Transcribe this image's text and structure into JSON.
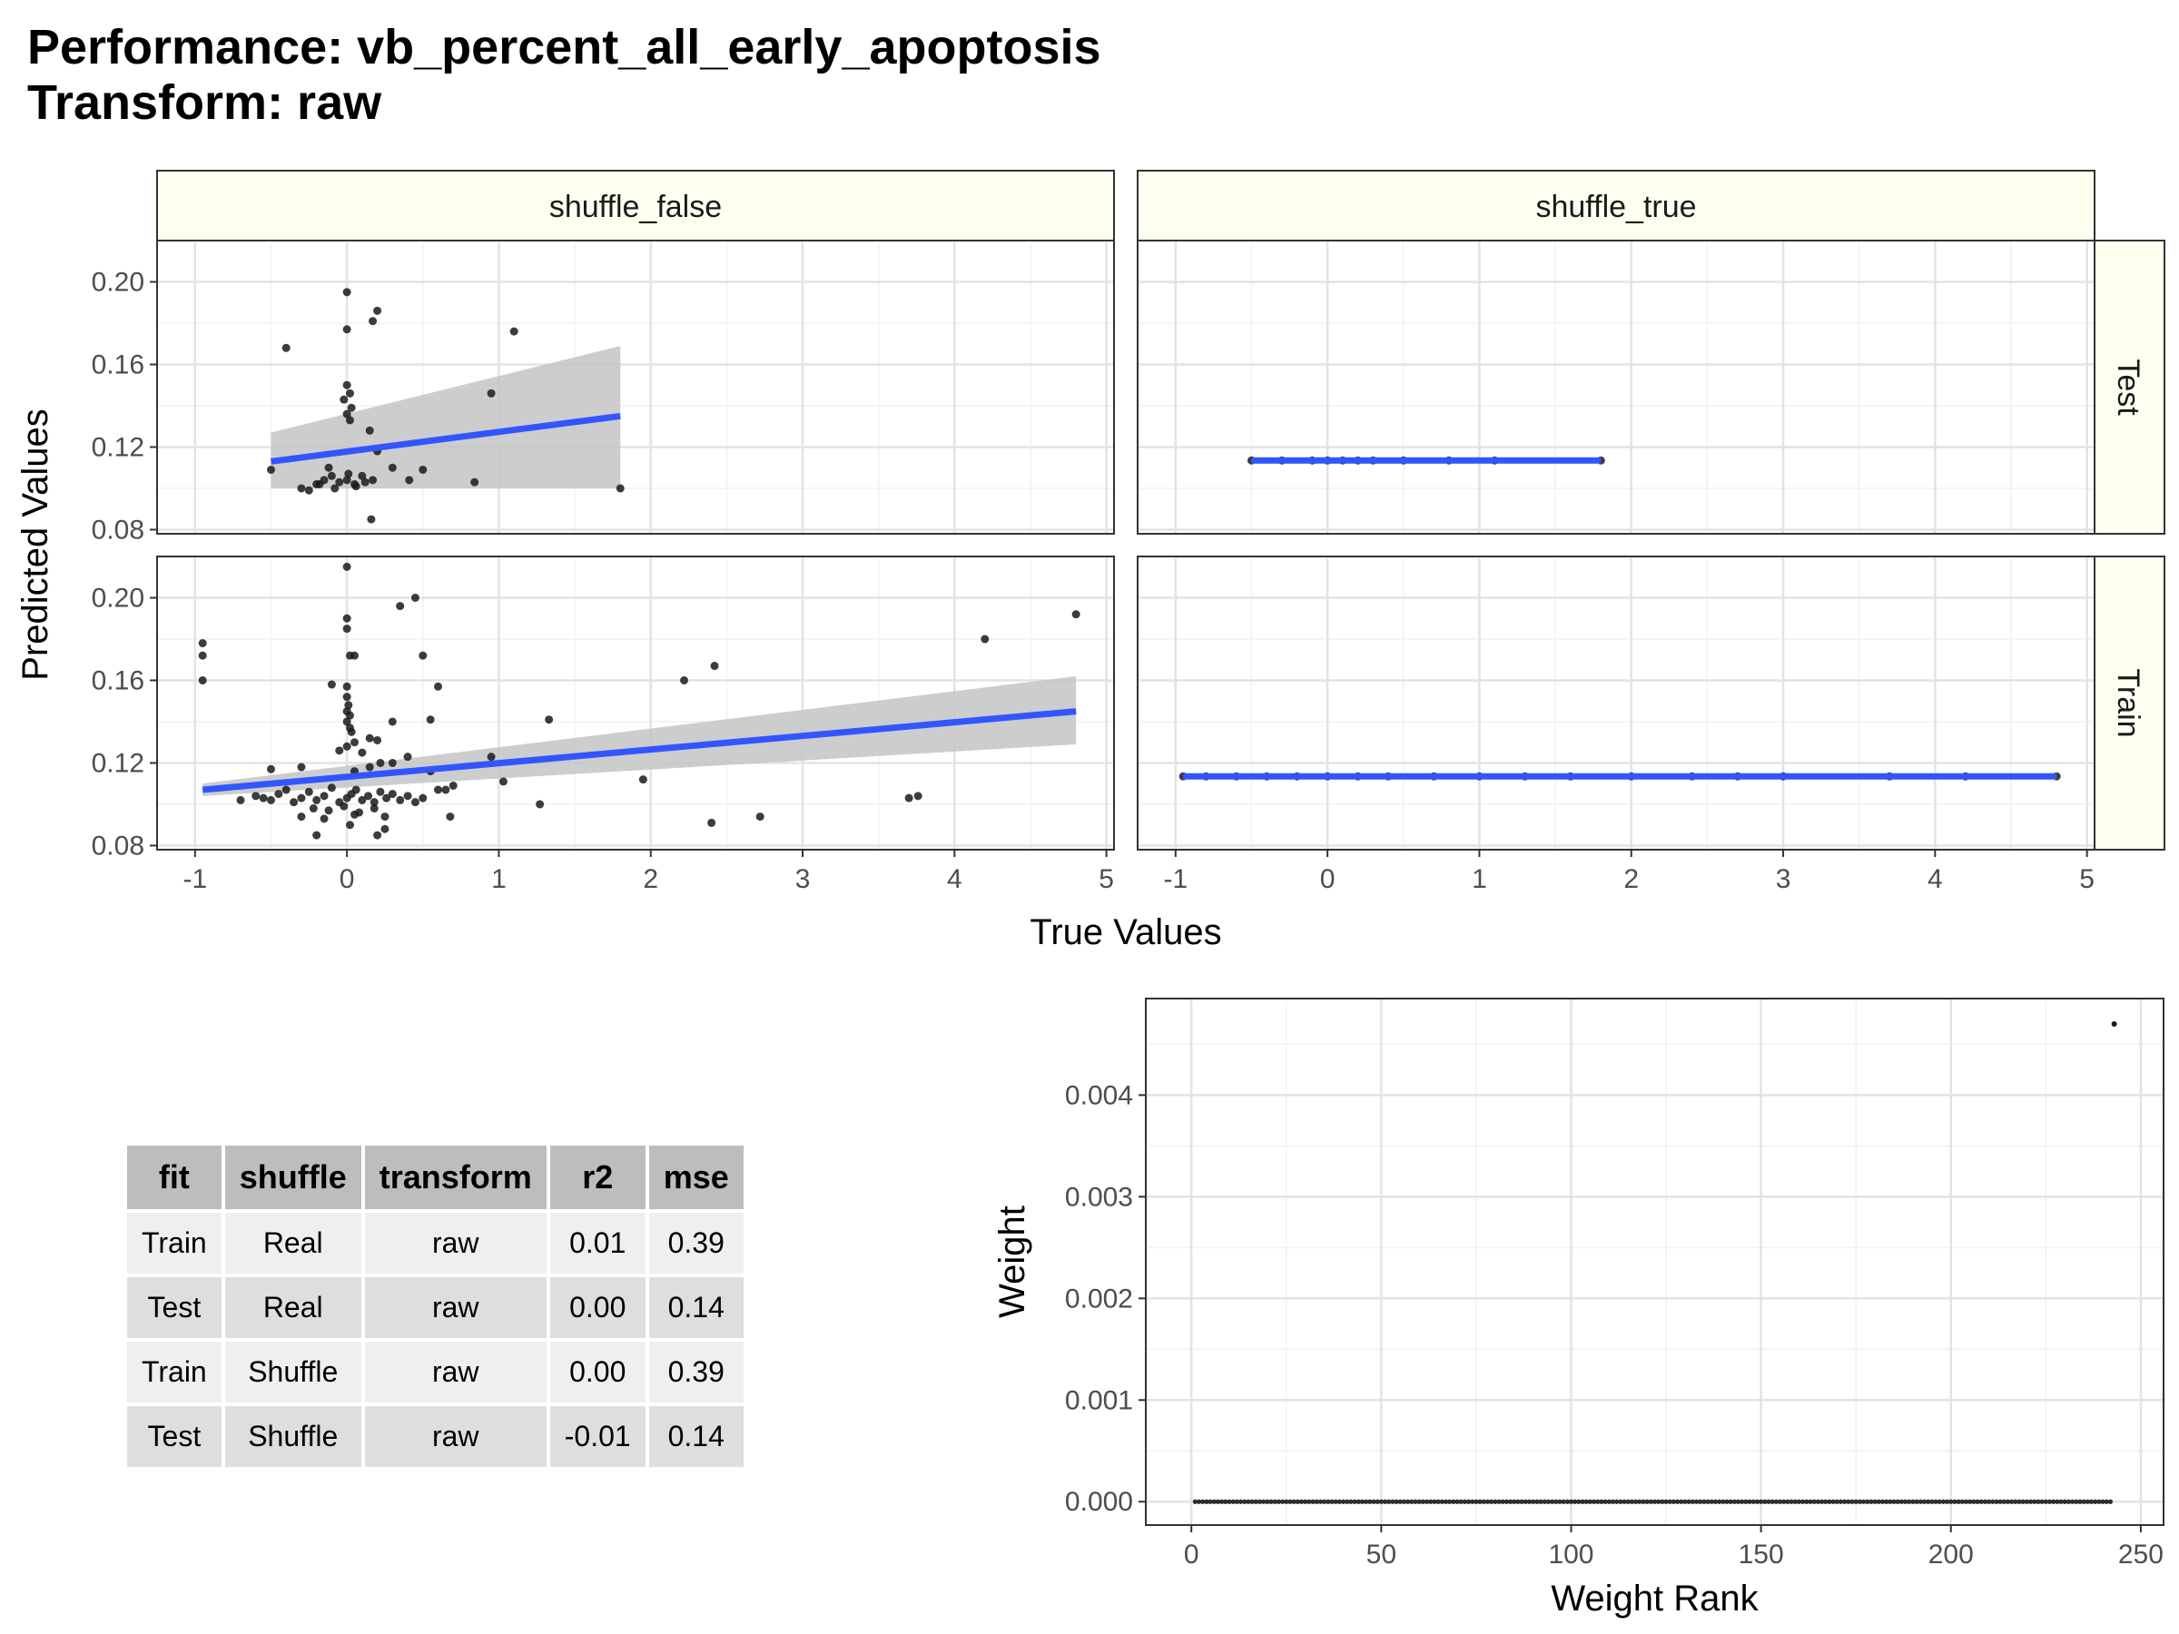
{
  "title": {
    "line1": "Performance: vb_percent_all_early_apoptosis",
    "line2": "Transform: raw"
  },
  "colors": {
    "fit_line": "#3355ff",
    "ribbon": "#c4c4c4",
    "strip_fill": "#fffff0",
    "points": "#1a1a1a",
    "grid_major": "#e3e3e3",
    "grid_minor": "#f1f1f1",
    "table_header": "#bdbdbd",
    "table_row_light": "#efefef",
    "table_row_dark": "#dedede"
  },
  "chart_data": [
    {
      "type": "scatter",
      "facet_columns": [
        "shuffle_false",
        "shuffle_true"
      ],
      "facet_rows": [
        "Test",
        "Train"
      ],
      "xlabel": "True Values",
      "ylabel": "Predicted Values",
      "xlim": [
        -1.25,
        5.05
      ],
      "ylim": [
        0.078,
        0.22
      ],
      "x_ticks": [
        -1,
        0,
        1,
        2,
        3,
        4,
        5
      ],
      "x_tick_labels": [
        "-1",
        "0",
        "1",
        "2",
        "3",
        "4",
        "5"
      ],
      "y_ticks": [
        0.08,
        0.12,
        0.16,
        0.2
      ],
      "y_tick_labels": [
        "0.08",
        "0.12",
        "0.16",
        "0.20"
      ],
      "grid": true,
      "panels": [
        {
          "col": "shuffle_false",
          "row": "Test",
          "points": [
            [
              0,
              0.195
            ],
            [
              0.2,
              0.186
            ],
            [
              0.17,
              0.181
            ],
            [
              0,
              0.177
            ],
            [
              1.1,
              0.176
            ],
            [
              -0.4,
              0.168
            ],
            [
              0.95,
              0.146
            ],
            [
              0,
              0.15
            ],
            [
              0.02,
              0.146
            ],
            [
              -0.02,
              0.143
            ],
            [
              0.03,
              0.139
            ],
            [
              0,
              0.136
            ],
            [
              0.02,
              0.133
            ],
            [
              0.15,
              0.128
            ],
            [
              0.2,
              0.118
            ],
            [
              0.3,
              0.11
            ],
            [
              0.5,
              0.109
            ],
            [
              0.41,
              0.104
            ],
            [
              0.84,
              0.103
            ],
            [
              -0.5,
              0.109
            ],
            [
              -0.3,
              0.1
            ],
            [
              -0.25,
              0.099
            ],
            [
              -0.2,
              0.102
            ],
            [
              -0.15,
              0.104
            ],
            [
              -0.1,
              0.106
            ],
            [
              -0.05,
              0.103
            ],
            [
              0,
              0.104
            ],
            [
              0.05,
              0.102
            ],
            [
              0.1,
              0.106
            ],
            [
              0.12,
              0.103
            ],
            [
              0.17,
              0.104
            ],
            [
              -0.18,
              0.102
            ],
            [
              -0.08,
              0.1
            ],
            [
              0.01,
              0.107
            ],
            [
              0.06,
              0.101
            ],
            [
              0.16,
              0.085
            ],
            [
              1.8,
              0.1
            ],
            [
              -0.12,
              0.11
            ]
          ],
          "fit": {
            "x": [
              -0.5,
              1.8
            ],
            "y": [
              0.113,
              0.135
            ],
            "lower": [
              0.1,
              0.1
            ],
            "upper": [
              0.127,
              0.169
            ]
          }
        },
        {
          "col": "shuffle_true",
          "row": "Test",
          "points": [
            [
              -0.5,
              0.1135
            ],
            [
              -0.3,
              0.1135
            ],
            [
              -0.1,
              0.1135
            ],
            [
              0,
              0.1135
            ],
            [
              0.1,
              0.1135
            ],
            [
              0.2,
              0.1135
            ],
            [
              0.3,
              0.1135
            ],
            [
              0.5,
              0.1135
            ],
            [
              0.8,
              0.1135
            ],
            [
              1.1,
              0.1135
            ],
            [
              1.8,
              0.1135
            ]
          ],
          "fit": {
            "x": [
              -0.5,
              1.8
            ],
            "y": [
              0.1135,
              0.1135
            ],
            "lower": [
              0.113,
              0.113
            ],
            "upper": [
              0.114,
              0.114
            ]
          }
        },
        {
          "col": "shuffle_false",
          "row": "Train",
          "points": [
            [
              0,
              0.215
            ],
            [
              0.45,
              0.2
            ],
            [
              0.35,
              0.196
            ],
            [
              4.8,
              0.192
            ],
            [
              0,
              0.19
            ],
            [
              0,
              0.185
            ],
            [
              -0.95,
              0.178
            ],
            [
              -0.95,
              0.172
            ],
            [
              0.02,
              0.172
            ],
            [
              0.05,
              0.172
            ],
            [
              0.5,
              0.172
            ],
            [
              4.2,
              0.18
            ],
            [
              2.42,
              0.167
            ],
            [
              2.22,
              0.16
            ],
            [
              -0.95,
              0.16
            ],
            [
              -0.1,
              0.158
            ],
            [
              0,
              0.157
            ],
            [
              0.6,
              0.157
            ],
            [
              0,
              0.152
            ],
            [
              0.01,
              0.148
            ],
            [
              0,
              0.145
            ],
            [
              0.02,
              0.143
            ],
            [
              0.3,
              0.14
            ],
            [
              0.55,
              0.141
            ],
            [
              1.33,
              0.141
            ],
            [
              0,
              0.14
            ],
            [
              0.02,
              0.137
            ],
            [
              0.03,
              0.135
            ],
            [
              0.15,
              0.132
            ],
            [
              0.2,
              0.131
            ],
            [
              0.05,
              0.13
            ],
            [
              0,
              0.128
            ],
            [
              -0.05,
              0.126
            ],
            [
              0.1,
              0.125
            ],
            [
              0.4,
              0.123
            ],
            [
              0.95,
              0.123
            ],
            [
              0.3,
              0.12
            ],
            [
              0.22,
              0.12
            ],
            [
              0.15,
              0.118
            ],
            [
              -0.3,
              0.118
            ],
            [
              -0.5,
              0.117
            ],
            [
              0.05,
              0.116
            ],
            [
              0.55,
              0.116
            ],
            [
              1.95,
              0.112
            ],
            [
              1.03,
              0.111
            ],
            [
              0.7,
              0.109
            ],
            [
              0.65,
              0.107
            ],
            [
              0.6,
              0.107
            ],
            [
              -0.6,
              0.104
            ],
            [
              -0.55,
              0.103
            ],
            [
              -0.5,
              0.102
            ],
            [
              -0.45,
              0.105
            ],
            [
              -0.4,
              0.107
            ],
            [
              -0.35,
              0.101
            ],
            [
              -0.3,
              0.103
            ],
            [
              -0.25,
              0.106
            ],
            [
              -0.2,
              0.102
            ],
            [
              -0.15,
              0.104
            ],
            [
              -0.1,
              0.108
            ],
            [
              -0.05,
              0.101
            ],
            [
              0,
              0.103
            ],
            [
              0.03,
              0.105
            ],
            [
              0.06,
              0.107
            ],
            [
              0.1,
              0.102
            ],
            [
              0.14,
              0.104
            ],
            [
              0.18,
              0.101
            ],
            [
              0.22,
              0.106
            ],
            [
              0.26,
              0.103
            ],
            [
              0.3,
              0.105
            ],
            [
              0.35,
              0.102
            ],
            [
              0.4,
              0.104
            ],
            [
              0.45,
              0.101
            ],
            [
              0.5,
              0.103
            ],
            [
              -0.22,
              0.098
            ],
            [
              -0.12,
              0.097
            ],
            [
              -0.02,
              0.099
            ],
            [
              0.08,
              0.096
            ],
            [
              0.18,
              0.098
            ],
            [
              -0.3,
              0.094
            ],
            [
              -0.15,
              0.093
            ],
            [
              0.25,
              0.094
            ],
            [
              0.05,
              0.095
            ],
            [
              -0.2,
              0.085
            ],
            [
              0.2,
              0.085
            ],
            [
              0.25,
              0.088
            ],
            [
              0.02,
              0.09
            ],
            [
              0.68,
              0.094
            ],
            [
              1.27,
              0.1
            ],
            [
              2.72,
              0.094
            ],
            [
              2.4,
              0.091
            ],
            [
              3.7,
              0.103
            ],
            [
              3.76,
              0.104
            ],
            [
              -0.7,
              0.102
            ]
          ],
          "fit": {
            "x": [
              -0.95,
              4.8
            ],
            "y": [
              0.107,
              0.145
            ],
            "lower": [
              0.104,
              0.129
            ],
            "upper": [
              0.11,
              0.162
            ]
          }
        },
        {
          "col": "shuffle_true",
          "row": "Train",
          "points": [
            [
              -0.95,
              0.1135
            ],
            [
              -0.8,
              0.1135
            ],
            [
              -0.6,
              0.1135
            ],
            [
              -0.4,
              0.1135
            ],
            [
              -0.2,
              0.1135
            ],
            [
              0,
              0.1135
            ],
            [
              0.2,
              0.1135
            ],
            [
              0.4,
              0.1135
            ],
            [
              0.7,
              0.1135
            ],
            [
              1.0,
              0.1135
            ],
            [
              1.3,
              0.1135
            ],
            [
              1.6,
              0.1135
            ],
            [
              2.0,
              0.1135
            ],
            [
              2.4,
              0.1135
            ],
            [
              2.7,
              0.1135
            ],
            [
              3.0,
              0.1135
            ],
            [
              3.7,
              0.1135
            ],
            [
              4.2,
              0.1135
            ],
            [
              4.8,
              0.1135
            ]
          ],
          "fit": {
            "x": [
              -0.95,
              4.8
            ],
            "y": [
              0.1135,
              0.1135
            ],
            "lower": [
              0.113,
              0.113
            ],
            "upper": [
              0.114,
              0.114
            ]
          }
        }
      ]
    },
    {
      "type": "table",
      "columns": [
        "fit",
        "shuffle",
        "transform",
        "r2",
        "mse"
      ],
      "rows": [
        [
          "Train",
          "Real",
          "raw",
          "0.01",
          "0.39"
        ],
        [
          "Test",
          "Real",
          "raw",
          "0.00",
          "0.14"
        ],
        [
          "Train",
          "Shuffle",
          "raw",
          "0.00",
          "0.39"
        ],
        [
          "Test",
          "Shuffle",
          "raw",
          "-0.01",
          "0.14"
        ]
      ]
    },
    {
      "type": "scatter",
      "xlabel": "Weight Rank",
      "ylabel": "Weight",
      "xlim": [
        -12,
        256
      ],
      "ylim": [
        -0.00023,
        0.00495
      ],
      "x_ticks": [
        0,
        50,
        100,
        150,
        200,
        250
      ],
      "x_tick_labels": [
        "0",
        "50",
        "100",
        "150",
        "200",
        "250"
      ],
      "y_ticks": [
        0,
        0.001,
        0.002,
        0.003,
        0.004
      ],
      "y_tick_labels": [
        "0.000",
        "0.001",
        "0.002",
        "0.003",
        "0.004"
      ],
      "grid": true,
      "n_points": 243,
      "zero_weight_ranks": [
        1,
        242
      ],
      "nonzero_points": [
        [
          243,
          0.0047
        ]
      ]
    }
  ]
}
